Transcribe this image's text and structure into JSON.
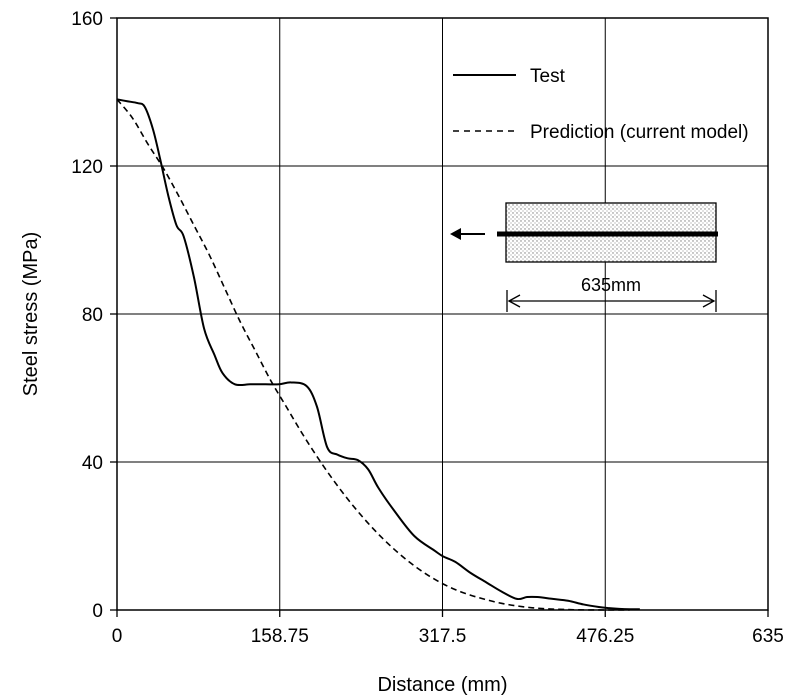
{
  "chart_data": {
    "type": "line",
    "title": "",
    "xlabel": "Distance (mm)",
    "ylabel": "Steel stress (MPa)",
    "xlim": [
      0,
      635
    ],
    "ylim": [
      0,
      160
    ],
    "x_ticks": [
      0,
      158.75,
      317.5,
      476.25,
      635
    ],
    "x_tick_labels": [
      "0",
      "158.75",
      "317.5",
      "476.25",
      "635"
    ],
    "y_ticks": [
      0,
      40,
      80,
      120,
      160
    ],
    "y_tick_labels": [
      "0",
      "40",
      "80",
      "120",
      "160"
    ],
    "grid": true,
    "legend_position": "top-right",
    "series": [
      {
        "name": "Test",
        "style": "solid",
        "color": "#000000",
        "x": [
          0,
          10,
          20,
          27,
          35,
          42,
          50,
          58,
          65,
          75,
          85,
          95,
          103,
          115,
          130,
          145,
          158,
          170,
          185,
          195,
          205,
          215,
          225,
          235,
          245,
          255,
          270,
          290,
          310,
          318,
          330,
          345,
          360,
          375,
          390,
          400,
          410,
          425,
          440,
          455,
          470,
          480,
          490,
          500,
          510
        ],
        "y": [
          138,
          137.5,
          137,
          136,
          130,
          122,
          112,
          104,
          101,
          90,
          76,
          69,
          64,
          61,
          61,
          61,
          61,
          61.5,
          60.5,
          55,
          44,
          42,
          41,
          40.5,
          38,
          33,
          27,
          20,
          16,
          14.5,
          13,
          10,
          7.5,
          5,
          3,
          3.5,
          3.5,
          3,
          2.5,
          1.5,
          0.8,
          0.5,
          0.3,
          0.2,
          0.2
        ]
      },
      {
        "name": "Prediction (current model)",
        "style": "dashed",
        "color": "#000000",
        "x": [
          0,
          15,
          30,
          45,
          60,
          75,
          90,
          105,
          120,
          135,
          150,
          165,
          180,
          195,
          210,
          225,
          240,
          255,
          270,
          285,
          300,
          315,
          330,
          345,
          360,
          375,
          390,
          405,
          420,
          435,
          450,
          465,
          476,
          490,
          500
        ],
        "y": [
          138,
          133,
          126,
          119.5,
          112,
          104,
          96,
          87,
          78,
          70,
          62,
          55,
          48,
          41.5,
          35.5,
          30,
          25,
          20.5,
          16.5,
          13,
          10,
          7.5,
          5.5,
          4,
          2.8,
          1.8,
          1.1,
          0.6,
          0.3,
          0.15,
          0.05,
          0.02,
          0,
          0,
          0
        ]
      }
    ],
    "inset": {
      "label": "635mm",
      "description_arrow": "left"
    }
  }
}
